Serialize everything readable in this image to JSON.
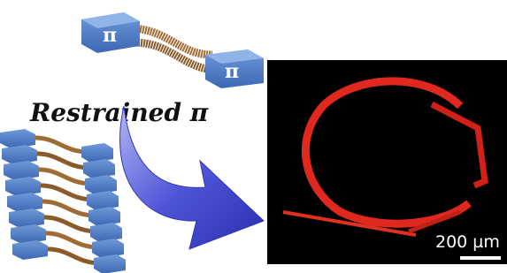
{
  "top_labels": [
    "π",
    "π"
  ],
  "caption": "Restrained π",
  "scale_bar": "200 µm"
}
